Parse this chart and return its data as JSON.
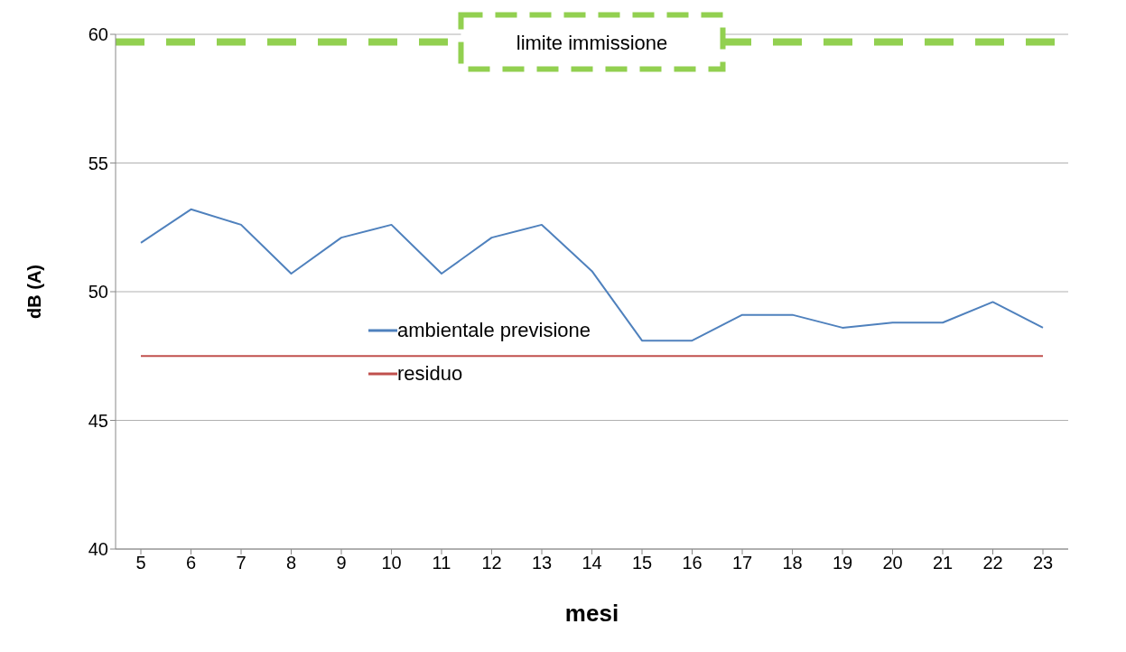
{
  "chart_data": {
    "type": "line",
    "xlabel": "mesi",
    "ylabel": "dB (A)",
    "categories": [
      "5",
      "6",
      "7",
      "8",
      "9",
      "10",
      "11",
      "12",
      "13",
      "14",
      "15",
      "16",
      "17",
      "18",
      "19",
      "20",
      "21",
      "22",
      "23"
    ],
    "series": [
      {
        "name": "ambientale previsione",
        "color": "#4f81bd",
        "values": [
          51.9,
          53.2,
          52.6,
          50.7,
          52.1,
          52.6,
          50.7,
          52.1,
          52.6,
          50.8,
          48.1,
          48.1,
          49.1,
          49.1,
          48.6,
          48.8,
          48.8,
          49.6,
          48.6
        ]
      },
      {
        "name": "residuo",
        "color": "#c0504d",
        "values": [
          47.5,
          47.5,
          47.5,
          47.5,
          47.5,
          47.5,
          47.5,
          47.5,
          47.5,
          47.5,
          47.5,
          47.5,
          47.5,
          47.5,
          47.5,
          47.5,
          47.5,
          47.5,
          47.5
        ]
      }
    ],
    "ylim": [
      40,
      60
    ],
    "yticks": [
      40,
      45,
      50,
      55,
      60
    ],
    "grid": "y",
    "legend": "center",
    "marker": "none",
    "line_style": "solid",
    "ref_lines": [
      {
        "axis": "y",
        "value": 59.7,
        "label": "limite immissione",
        "color": "#92d050",
        "line_style": "dashed"
      }
    ]
  }
}
